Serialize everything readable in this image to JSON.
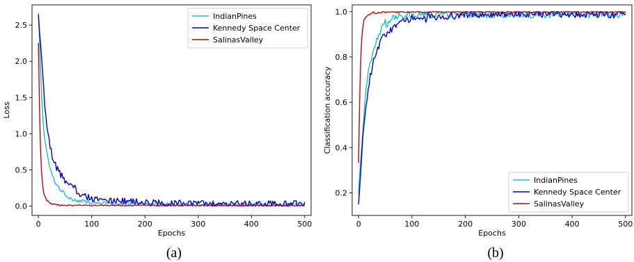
{
  "chart_data": [
    {
      "type": "line",
      "caption": "(a)",
      "xlabel": "Epochs",
      "ylabel": "Loss",
      "xlim": [
        -12,
        512
      ],
      "ylim": [
        -0.13,
        2.78
      ],
      "xticks": [
        0,
        100,
        200,
        300,
        400,
        500
      ],
      "yticks": [
        0.0,
        0.5,
        1.0,
        1.5,
        2.0,
        2.5
      ],
      "ytick_labels": [
        "0.0",
        "0.5",
        "1.0",
        "1.5",
        "2.0",
        "2.5"
      ],
      "grid": false,
      "legend_position": "top-right",
      "series": [
        {
          "name": "IndianPines",
          "color": "#17becf",
          "points": [
            [
              0,
              2.66
            ],
            [
              2,
              2.3
            ],
            [
              4,
              1.9
            ],
            [
              6,
              1.55
            ],
            [
              8,
              1.28
            ],
            [
              10,
              1.05
            ],
            [
              14,
              0.82
            ],
            [
              18,
              0.65
            ],
            [
              22,
              0.52
            ],
            [
              26,
              0.42
            ],
            [
              30,
              0.35
            ],
            [
              35,
              0.29
            ],
            [
              40,
              0.24
            ],
            [
              45,
              0.2
            ],
            [
              50,
              0.16
            ],
            [
              55,
              0.13
            ],
            [
              60,
              0.11
            ],
            [
              70,
              0.08
            ],
            [
              80,
              0.07
            ],
            [
              90,
              0.06
            ],
            [
              100,
              0.05
            ],
            [
              120,
              0.04
            ],
            [
              150,
              0.03
            ],
            [
              200,
              0.03
            ],
            [
              300,
              0.02
            ],
            [
              400,
              0.02
            ],
            [
              500,
              0.02
            ]
          ],
          "noise": 0.025
        },
        {
          "name": "Kennedy Space Center",
          "color": "#0000cc",
          "points": [
            [
              0,
              2.55
            ],
            [
              3,
              2.35
            ],
            [
              6,
              2.05
            ],
            [
              9,
              1.7
            ],
            [
              12,
              1.4
            ],
            [
              16,
              1.1
            ],
            [
              20,
              0.9
            ],
            [
              25,
              0.72
            ],
            [
              30,
              0.6
            ],
            [
              35,
              0.52
            ],
            [
              40,
              0.46
            ],
            [
              45,
              0.4
            ],
            [
              50,
              0.34
            ],
            [
              60,
              0.27
            ],
            [
              70,
              0.21
            ],
            [
              80,
              0.16
            ],
            [
              90,
              0.13
            ],
            [
              100,
              0.11
            ],
            [
              120,
              0.09
            ],
            [
              150,
              0.07
            ],
            [
              200,
              0.05
            ],
            [
              250,
              0.04
            ],
            [
              300,
              0.03
            ],
            [
              400,
              0.03
            ],
            [
              500,
              0.03
            ]
          ],
          "noise": 0.045
        },
        {
          "name": "SalinasValley",
          "color": "#cc0000",
          "points": [
            [
              0,
              2.25
            ],
            [
              2,
              1.4
            ],
            [
              4,
              0.8
            ],
            [
              6,
              0.45
            ],
            [
              8,
              0.28
            ],
            [
              10,
              0.18
            ],
            [
              13,
              0.12
            ],
            [
              16,
              0.08
            ],
            [
              20,
              0.05
            ],
            [
              25,
              0.03
            ],
            [
              30,
              0.02
            ],
            [
              40,
              0.01
            ],
            [
              60,
              0.01
            ],
            [
              500,
              0.005
            ]
          ],
          "noise": 0.008
        }
      ]
    },
    {
      "type": "line",
      "caption": "(b)",
      "xlabel": "Epochs",
      "ylabel": "Classification accuracy",
      "xlim": [
        -12,
        512
      ],
      "ylim": [
        0.1,
        1.03
      ],
      "xticks": [
        0,
        100,
        200,
        300,
        400,
        500
      ],
      "yticks": [
        0.2,
        0.4,
        0.6,
        0.8,
        1.0
      ],
      "ytick_labels": [
        "0.2",
        "0.4",
        "0.6",
        "0.8",
        "1.0"
      ],
      "grid": false,
      "legend_position": "bottom-right",
      "series": [
        {
          "name": "IndianPines",
          "color": "#17becf",
          "points": [
            [
              0,
              0.19
            ],
            [
              3,
              0.3
            ],
            [
              6,
              0.42
            ],
            [
              10,
              0.55
            ],
            [
              15,
              0.67
            ],
            [
              20,
              0.75
            ],
            [
              25,
              0.8
            ],
            [
              30,
              0.84
            ],
            [
              35,
              0.88
            ],
            [
              40,
              0.91
            ],
            [
              50,
              0.94
            ],
            [
              60,
              0.96
            ],
            [
              70,
              0.97
            ],
            [
              80,
              0.98
            ],
            [
              100,
              0.985
            ],
            [
              150,
              0.99
            ],
            [
              200,
              0.99
            ],
            [
              300,
              0.99
            ],
            [
              400,
              0.99
            ],
            [
              500,
              0.99
            ]
          ],
          "noise": 0.018
        },
        {
          "name": "Kennedy Space Center",
          "color": "#0000cc",
          "points": [
            [
              0,
              0.14
            ],
            [
              3,
              0.26
            ],
            [
              6,
              0.37
            ],
            [
              10,
              0.5
            ],
            [
              15,
              0.61
            ],
            [
              20,
              0.69
            ],
            [
              25,
              0.75
            ],
            [
              30,
              0.8
            ],
            [
              40,
              0.86
            ],
            [
              50,
              0.9
            ],
            [
              60,
              0.92
            ],
            [
              70,
              0.94
            ],
            [
              80,
              0.95
            ],
            [
              90,
              0.96
            ],
            [
              100,
              0.97
            ],
            [
              120,
              0.975
            ],
            [
              150,
              0.98
            ],
            [
              200,
              0.985
            ],
            [
              300,
              0.99
            ],
            [
              400,
              0.99
            ],
            [
              500,
              0.985
            ]
          ],
          "noise": 0.016
        },
        {
          "name": "SalinasValley",
          "color": "#cc0000",
          "points": [
            [
              0,
              0.33
            ],
            [
              2,
              0.6
            ],
            [
              4,
              0.78
            ],
            [
              6,
              0.88
            ],
            [
              8,
              0.93
            ],
            [
              10,
              0.96
            ],
            [
              14,
              0.98
            ],
            [
              20,
              0.99
            ],
            [
              30,
              0.995
            ],
            [
              60,
              0.998
            ],
            [
              100,
              0.999
            ],
            [
              500,
              0.999
            ]
          ],
          "noise": 0.004
        }
      ]
    }
  ]
}
